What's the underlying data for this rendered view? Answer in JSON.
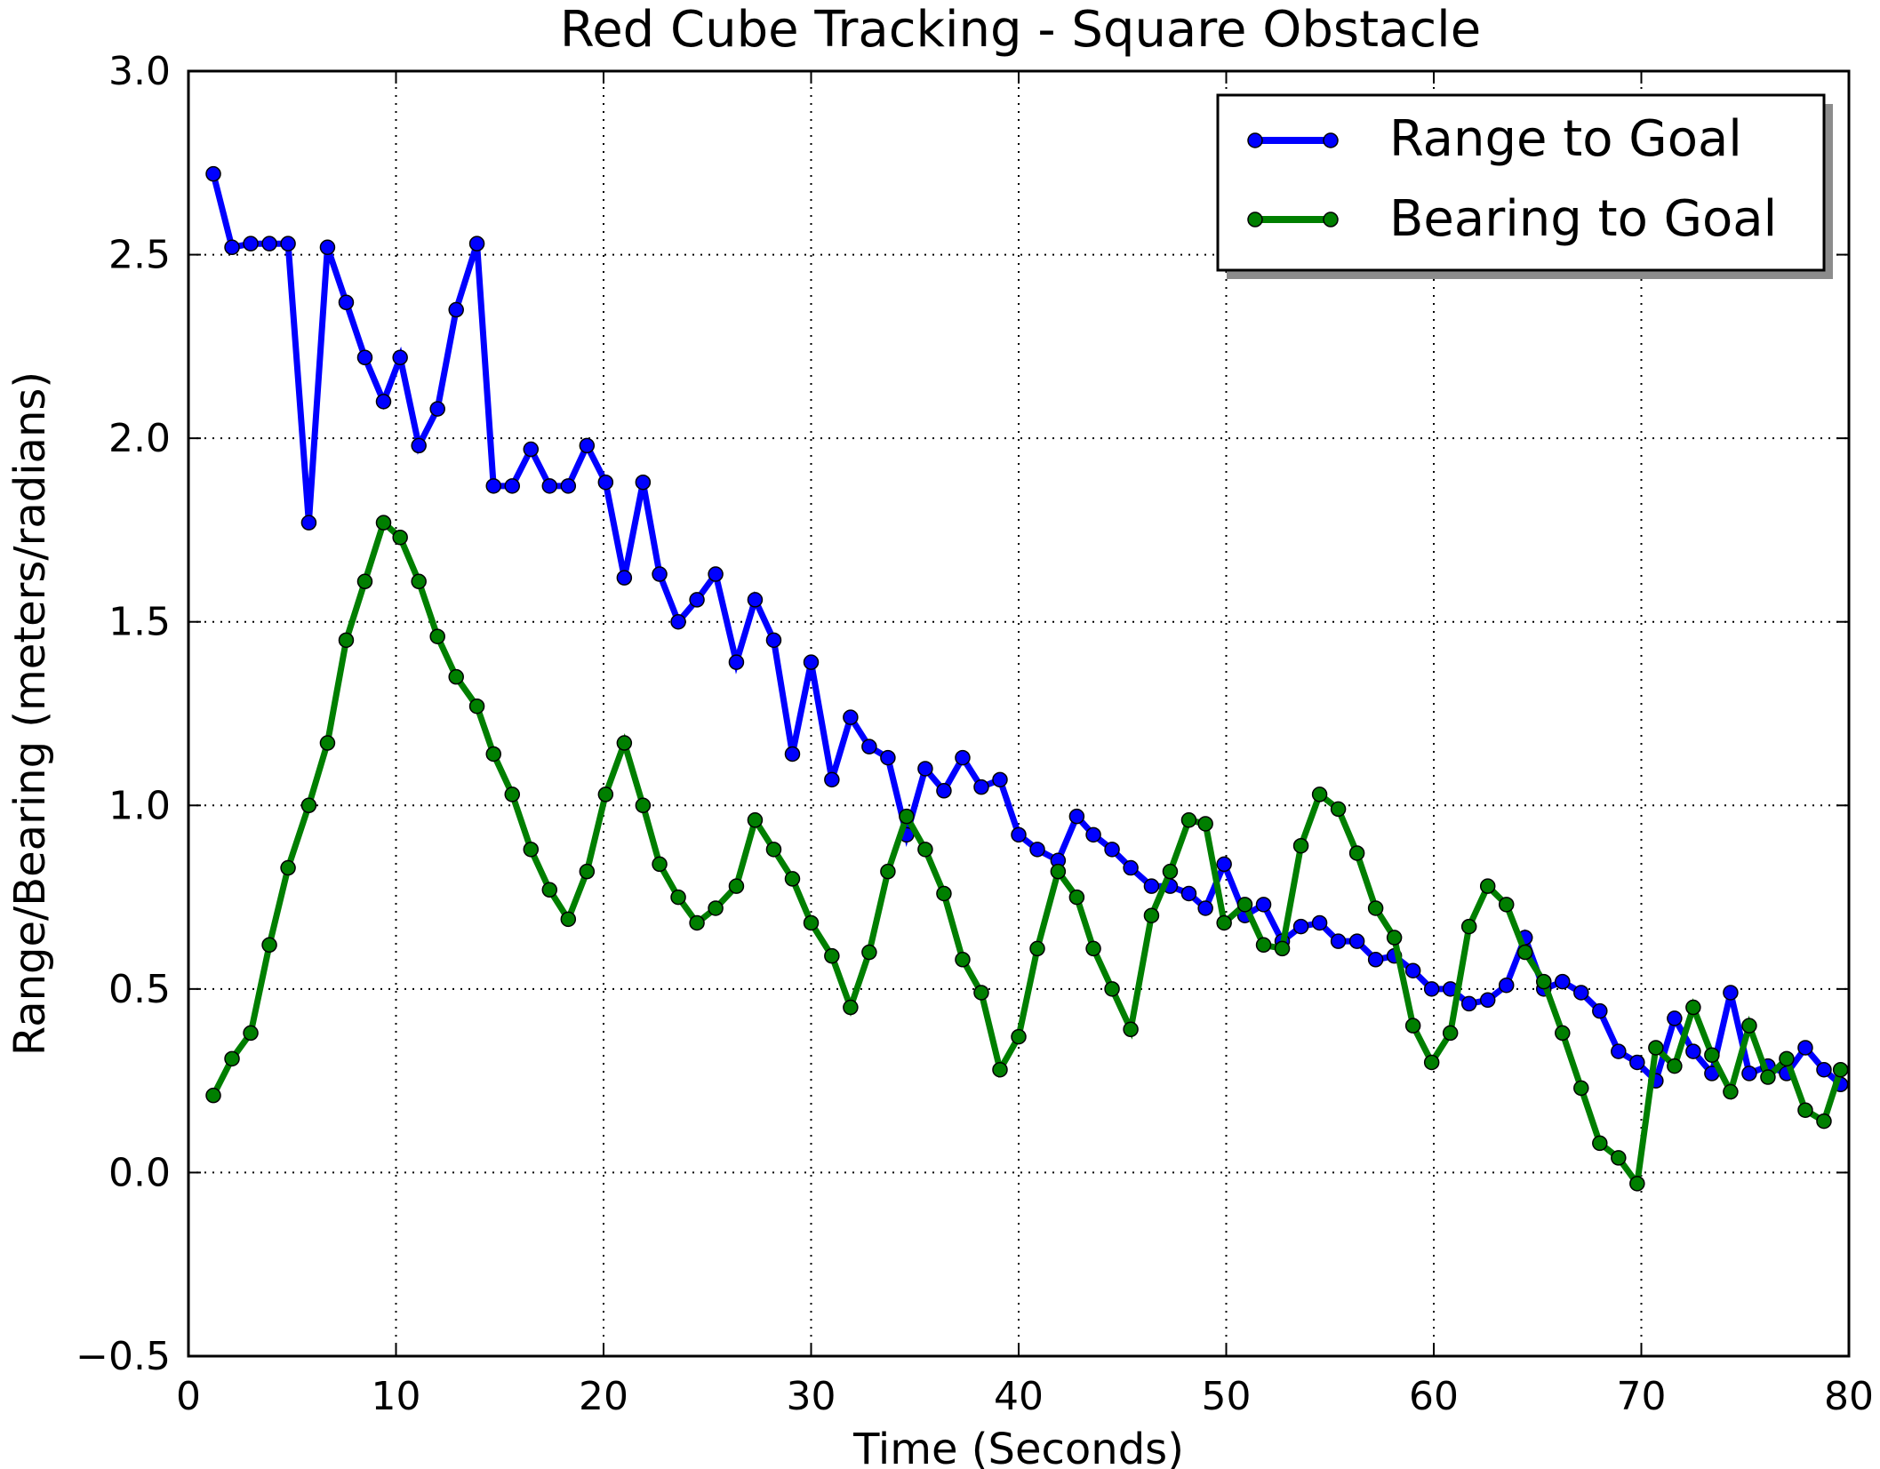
{
  "chart_data": {
    "type": "line",
    "title": "Red Cube Tracking - Square Obstacle",
    "xlabel": "Time (Seconds)",
    "ylabel": "Range/Bearing (meters/radians)",
    "xlim": [
      0,
      80
    ],
    "ylim": [
      -0.5,
      3.0
    ],
    "xticks": [
      0,
      10,
      20,
      30,
      40,
      50,
      60,
      70,
      80
    ],
    "xtick_labels": [
      "0",
      "10",
      "20",
      "30",
      "40",
      "50",
      "60",
      "70",
      "80"
    ],
    "yticks": [
      -0.5,
      0.0,
      0.5,
      1.0,
      1.5,
      2.0,
      2.5,
      3.0
    ],
    "ytick_labels": [
      "−0.5",
      "0.0",
      "0.5",
      "1.0",
      "1.5",
      "2.0",
      "2.5",
      "3.0"
    ],
    "grid": true,
    "legend_position": "top-right",
    "series": [
      {
        "name": "Range to Goal",
        "color": "#0000ff",
        "x": [
          1.2,
          2.1,
          3.0,
          3.9,
          4.8,
          5.8,
          6.7,
          7.6,
          8.5,
          9.4,
          10.2,
          11.1,
          12.0,
          12.9,
          13.9,
          14.7,
          15.6,
          16.5,
          17.4,
          18.3,
          19.2,
          20.1,
          21.0,
          21.9,
          22.7,
          23.6,
          24.5,
          25.4,
          26.4,
          27.3,
          28.2,
          29.1,
          30.0,
          31.0,
          31.9,
          32.8,
          33.7,
          34.6,
          35.5,
          36.4,
          37.3,
          38.2,
          39.1,
          40.0,
          40.9,
          41.9,
          42.8,
          43.6,
          44.5,
          45.4,
          46.4,
          47.3,
          48.2,
          49.0,
          49.9,
          50.9,
          51.8,
          52.7,
          53.6,
          54.5,
          55.4,
          56.3,
          57.2,
          58.1,
          59.0,
          59.9,
          60.8,
          61.7,
          62.6,
          63.5,
          64.4,
          65.3,
          66.2,
          67.1,
          68.0,
          68.9,
          69.8,
          70.7,
          71.6,
          72.5,
          73.4,
          74.3,
          75.2,
          76.1,
          77.0,
          77.9,
          78.8,
          79.6
        ],
        "values": [
          2.72,
          2.52,
          2.53,
          2.53,
          2.53,
          1.77,
          2.52,
          2.37,
          2.22,
          2.1,
          2.22,
          1.98,
          2.08,
          2.35,
          2.53,
          1.87,
          1.87,
          1.97,
          1.87,
          1.87,
          1.98,
          1.88,
          1.62,
          1.88,
          1.63,
          1.5,
          1.56,
          1.63,
          1.39,
          1.56,
          1.45,
          1.14,
          1.39,
          1.07,
          1.24,
          1.16,
          1.13,
          0.92,
          1.1,
          1.04,
          1.13,
          1.05,
          1.07,
          0.92,
          0.88,
          0.85,
          0.97,
          0.92,
          0.88,
          0.83,
          0.78,
          0.78,
          0.76,
          0.72,
          0.84,
          0.7,
          0.73,
          0.63,
          0.67,
          0.68,
          0.63,
          0.63,
          0.58,
          0.59,
          0.55,
          0.5,
          0.5,
          0.46,
          0.47,
          0.51,
          0.64,
          0.5,
          0.52,
          0.49,
          0.44,
          0.33,
          0.3,
          0.25,
          0.42,
          0.33,
          0.27,
          0.49,
          0.27,
          0.29,
          0.27,
          0.34,
          0.28,
          0.24
        ]
      },
      {
        "name": "Bearing to Goal",
        "color": "#007f00",
        "x": [
          1.2,
          2.1,
          3.0,
          3.9,
          4.8,
          5.8,
          6.7,
          7.6,
          8.5,
          9.4,
          10.2,
          11.1,
          12.0,
          12.9,
          13.9,
          14.7,
          15.6,
          16.5,
          17.4,
          18.3,
          19.2,
          20.1,
          21.0,
          21.9,
          22.7,
          23.6,
          24.5,
          25.4,
          26.4,
          27.3,
          28.2,
          29.1,
          30.0,
          31.0,
          31.9,
          32.8,
          33.7,
          34.6,
          35.5,
          36.4,
          37.3,
          38.2,
          39.1,
          40.0,
          40.9,
          41.9,
          42.8,
          43.6,
          44.5,
          45.4,
          46.4,
          47.3,
          48.2,
          49.0,
          49.9,
          50.9,
          51.8,
          52.7,
          53.6,
          54.5,
          55.4,
          56.3,
          57.2,
          58.1,
          59.0,
          59.9,
          60.8,
          61.7,
          62.6,
          63.5,
          64.4,
          65.3,
          66.2,
          67.1,
          68.0,
          68.9,
          69.8,
          70.7,
          71.6,
          72.5,
          73.4,
          74.3,
          75.2,
          76.1,
          77.0,
          77.9,
          78.8,
          79.6
        ],
        "values": [
          0.21,
          0.31,
          0.38,
          0.62,
          0.83,
          1.0,
          1.17,
          1.45,
          1.61,
          1.77,
          1.73,
          1.61,
          1.46,
          1.35,
          1.27,
          1.14,
          1.03,
          0.88,
          0.77,
          0.69,
          0.82,
          1.03,
          1.17,
          1.0,
          0.84,
          0.75,
          0.68,
          0.72,
          0.78,
          0.96,
          0.88,
          0.8,
          0.68,
          0.59,
          0.45,
          0.6,
          0.82,
          0.97,
          0.88,
          0.76,
          0.58,
          0.49,
          0.28,
          0.37,
          0.61,
          0.82,
          0.75,
          0.61,
          0.5,
          0.39,
          0.7,
          0.82,
          0.96,
          0.95,
          0.68,
          0.73,
          0.62,
          0.61,
          0.89,
          1.03,
          0.99,
          0.87,
          0.72,
          0.64,
          0.4,
          0.3,
          0.38,
          0.67,
          0.78,
          0.73,
          0.6,
          0.52,
          0.38,
          0.23,
          0.08,
          0.04,
          -0.03,
          0.34,
          0.29,
          0.45,
          0.32,
          0.22,
          0.4,
          0.26,
          0.31,
          0.17,
          0.14,
          0.28
        ]
      }
    ]
  }
}
